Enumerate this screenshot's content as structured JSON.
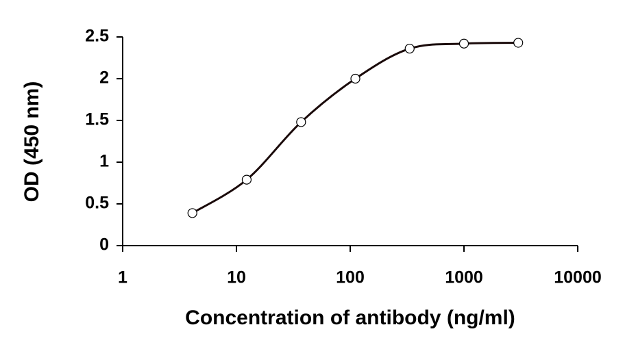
{
  "chart_data": {
    "type": "line",
    "xlabel": "Concentration of antibody (ng/ml)",
    "ylabel": "OD (450 nm)",
    "xscale": "log",
    "x": [
      4.1,
      12.3,
      37,
      111,
      333,
      1000,
      3000
    ],
    "series": [
      {
        "color": "#1a0a0a",
        "values": [
          0.39,
          0.79,
          1.48,
          2.0,
          2.36,
          2.42,
          2.43
        ]
      }
    ],
    "xlim": [
      1,
      10000
    ],
    "xticks": [
      1,
      10,
      100,
      1000,
      10000
    ],
    "ylim": [
      0,
      2.5
    ],
    "yticks": [
      0,
      0.5,
      1,
      1.5,
      2,
      2.5
    ],
    "grid": false
  }
}
